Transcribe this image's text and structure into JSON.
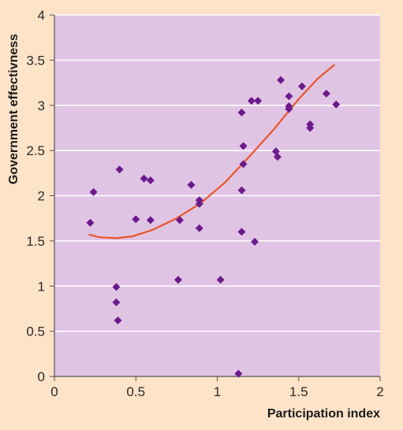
{
  "colors": {
    "page_background": "#fde3c8",
    "plot_background": "#e0c4e4",
    "gridline": "#ffffff",
    "marker": "#6b1a8c",
    "trendline": "#e8562a",
    "axis": "#555555"
  },
  "chart_data": {
    "type": "scatter",
    "title": "",
    "xlabel": "Participation index",
    "ylabel": "Government effectivness",
    "xlim": [
      0,
      2
    ],
    "ylim": [
      0,
      4
    ],
    "x_ticks": [
      0,
      0.5,
      1,
      1.5,
      2
    ],
    "x_tick_labels": [
      "0",
      "0.5",
      "1",
      "1.5",
      "2"
    ],
    "y_ticks": [
      0,
      0.5,
      1,
      1.5,
      2,
      2.5,
      3,
      3.5,
      4
    ],
    "y_tick_labels": [
      "0",
      "0.5",
      "1",
      "1.5",
      "2",
      "2.5",
      "3",
      "3.5",
      "4"
    ],
    "grid": "horizontal",
    "marker": "diamond",
    "points": [
      {
        "x": 0.22,
        "y": 1.7
      },
      {
        "x": 0.24,
        "y": 2.04
      },
      {
        "x": 0.38,
        "y": 0.99
      },
      {
        "x": 0.38,
        "y": 0.82
      },
      {
        "x": 0.39,
        "y": 0.62
      },
      {
        "x": 0.4,
        "y": 2.29
      },
      {
        "x": 0.5,
        "y": 1.74
      },
      {
        "x": 0.55,
        "y": 2.19
      },
      {
        "x": 0.59,
        "y": 2.17
      },
      {
        "x": 0.59,
        "y": 1.73
      },
      {
        "x": 0.77,
        "y": 1.73
      },
      {
        "x": 0.76,
        "y": 1.07
      },
      {
        "x": 0.84,
        "y": 2.12
      },
      {
        "x": 0.89,
        "y": 1.95
      },
      {
        "x": 0.89,
        "y": 1.91
      },
      {
        "x": 0.89,
        "y": 1.64
      },
      {
        "x": 1.02,
        "y": 1.07
      },
      {
        "x": 1.13,
        "y": 0.03
      },
      {
        "x": 1.15,
        "y": 2.92
      },
      {
        "x": 1.16,
        "y": 2.55
      },
      {
        "x": 1.16,
        "y": 2.35
      },
      {
        "x": 1.15,
        "y": 2.06
      },
      {
        "x": 1.15,
        "y": 1.6
      },
      {
        "x": 1.23,
        "y": 1.49
      },
      {
        "x": 1.21,
        "y": 3.05
      },
      {
        "x": 1.25,
        "y": 3.05
      },
      {
        "x": 1.36,
        "y": 2.49
      },
      {
        "x": 1.37,
        "y": 2.43
      },
      {
        "x": 1.39,
        "y": 3.28
      },
      {
        "x": 1.44,
        "y": 3.1
      },
      {
        "x": 1.44,
        "y": 2.99
      },
      {
        "x": 1.44,
        "y": 2.96
      },
      {
        "x": 1.52,
        "y": 3.21
      },
      {
        "x": 1.57,
        "y": 2.79
      },
      {
        "x": 1.57,
        "y": 2.75
      },
      {
        "x": 1.67,
        "y": 3.13
      },
      {
        "x": 1.73,
        "y": 3.01
      }
    ],
    "trendline": {
      "type": "quadratic",
      "x": [
        0.21,
        0.28,
        0.38,
        0.48,
        0.6,
        0.75,
        0.9,
        1.05,
        1.2,
        1.35,
        1.5,
        1.62,
        1.72
      ],
      "y": [
        1.57,
        1.54,
        1.53,
        1.55,
        1.62,
        1.75,
        1.92,
        2.15,
        2.44,
        2.74,
        3.07,
        3.3,
        3.45
      ]
    }
  }
}
